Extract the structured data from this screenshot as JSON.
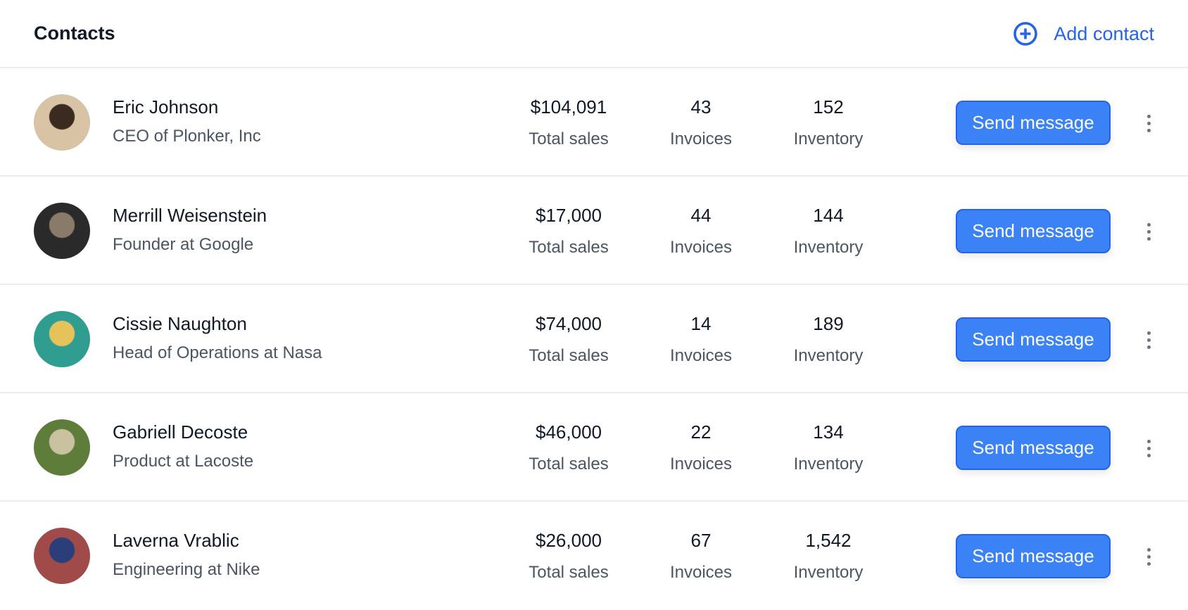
{
  "header": {
    "title": "Contacts",
    "add_label": "Add contact",
    "add_icon": "plus-circle-icon"
  },
  "colors": {
    "accent": "#3b82f6",
    "link": "#2563eb"
  },
  "contacts": [
    {
      "name": "Eric Johnson",
      "role": "CEO of Plonker, Inc",
      "sales": "$104,091",
      "sales_label": "Total sales",
      "invoices": "43",
      "invoices_label": "Invoices",
      "inventory": "152",
      "inventory_label": "Inventory",
      "button": "Send message",
      "avatar_colors": [
        "#d8c3a5",
        "#3b2a20"
      ]
    },
    {
      "name": "Merrill Weisenstein",
      "role": "Founder at Google",
      "sales": "$17,000",
      "sales_label": "Total sales",
      "invoices": "44",
      "invoices_label": "Invoices",
      "inventory": "144",
      "inventory_label": "Inventory",
      "button": "Send message",
      "avatar_colors": [
        "#2a2a2a",
        "#8a7a6a"
      ]
    },
    {
      "name": "Cissie Naughton",
      "role": "Head of Operations at Nasa",
      "sales": "$74,000",
      "sales_label": "Total sales",
      "invoices": "14",
      "invoices_label": "Invoices",
      "inventory": "189",
      "inventory_label": "Inventory",
      "button": "Send message",
      "avatar_colors": [
        "#2f9d8f",
        "#e6c35a"
      ]
    },
    {
      "name": "Gabriell Decoste",
      "role": "Product at Lacoste",
      "sales": "$46,000",
      "sales_label": "Total sales",
      "invoices": "22",
      "invoices_label": "Invoices",
      "inventory": "134",
      "inventory_label": "Inventory",
      "button": "Send message",
      "avatar_colors": [
        "#5f7d3a",
        "#c9c2a0"
      ]
    },
    {
      "name": "Laverna Vrablic",
      "role": "Engineering at Nike",
      "sales": "$26,000",
      "sales_label": "Total sales",
      "invoices": "67",
      "invoices_label": "Invoices",
      "inventory": "1,542",
      "inventory_label": "Inventory",
      "button": "Send message",
      "avatar_colors": [
        "#a04a4a",
        "#2a3f7a"
      ]
    }
  ]
}
